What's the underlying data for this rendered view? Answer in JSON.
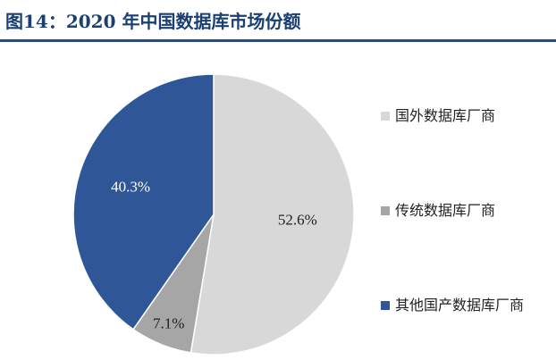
{
  "header": {
    "title": "图14：2020 年中国数据库市场份额"
  },
  "colors": {
    "title": "#1a3f73",
    "rule": "#2c4a7c"
  },
  "chart_data": {
    "type": "pie",
    "title": "图14：2020 年中国数据库市场份额",
    "start": "12 o'clock, clockwise",
    "legend_position": "right",
    "slices": [
      {
        "label": "国外数据库厂商",
        "value": 52.6,
        "display": "52.6%",
        "color": "#d8d8d8",
        "label_color": "#222222"
      },
      {
        "label": "传统数据库厂商",
        "value": 7.1,
        "display": "7.1%",
        "color": "#a6a6a6",
        "label_color": "#222222"
      },
      {
        "label": "其他国产数据库厂商",
        "value": 40.3,
        "display": "40.3%",
        "color": "#2f5797",
        "label_color": "#ffffff"
      }
    ]
  }
}
